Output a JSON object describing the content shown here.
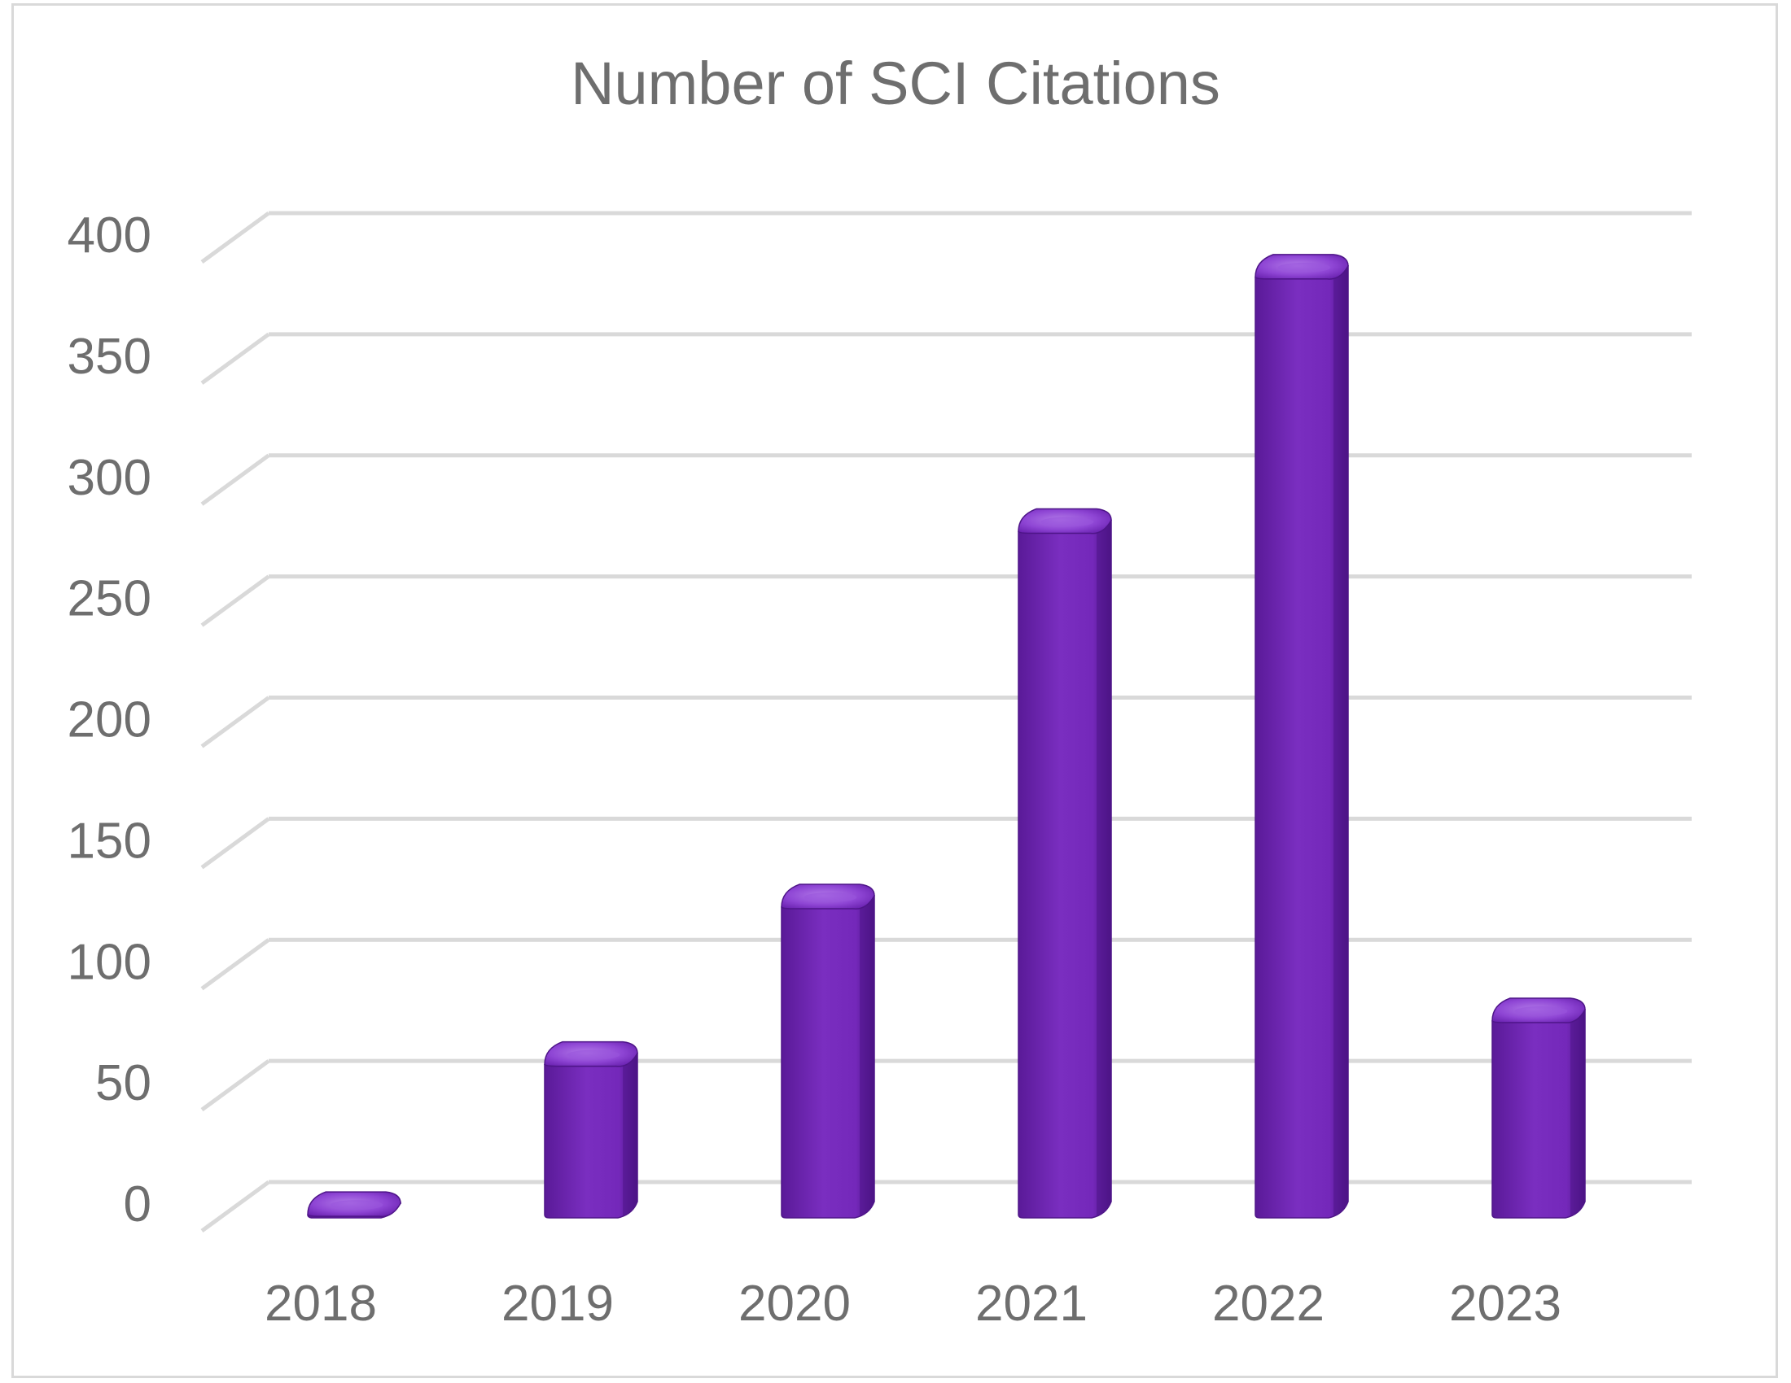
{
  "chart_data": {
    "type": "bar",
    "title": "Number of SCI Citations",
    "xlabel": "",
    "ylabel": "",
    "categories": [
      "2018",
      "2019",
      "2020",
      "2021",
      "2022",
      "2023"
    ],
    "values": [
      8,
      70,
      135,
      290,
      395,
      88
    ],
    "ylim": [
      0,
      400
    ],
    "yticks": [
      0,
      50,
      100,
      150,
      200,
      250,
      300,
      350,
      400
    ],
    "grid": true,
    "legend": "none",
    "style": "3d-cylinder",
    "colors": {
      "bar": "#7a2ec0",
      "bar_dark": "#4e1588",
      "bar_light": "#9a55dc",
      "grid": "#d9d9d9",
      "text": "#6e6e6e",
      "border": "#d9d9d9"
    }
  }
}
